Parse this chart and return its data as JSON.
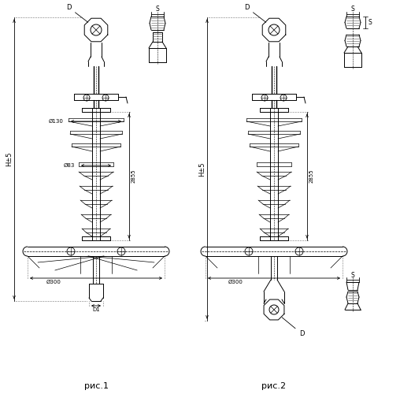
{
  "fig1_label": "рис.1",
  "fig2_label": "рис.2",
  "bg_color": "#ffffff",
  "lc": "#000000",
  "annotations": {
    "phi130": "Ø130",
    "phi83": "Ø83",
    "phi300_fig1": "Ø300",
    "phi300_fig2": "Ø300",
    "dim2855_fig1": "2855",
    "dim2855_fig2": "2855",
    "H5_fig1": "H±5",
    "H5_fig2": "H±5",
    "D1": "D1",
    "D": "D",
    "S": "S"
  }
}
